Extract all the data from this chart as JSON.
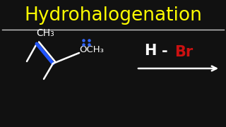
{
  "bg_color": "#111111",
  "title": "Hydrohalogenation",
  "title_color": "#ffff00",
  "title_fontsize": 19,
  "separator_color": "#cccccc",
  "struct_color": "#ffffff",
  "double_bond_color": "#2255ff",
  "dot_color": "#3366ff",
  "H_color": "#ffffff",
  "Br_color": "#cc1111",
  "arrow_color": "#ffffff",
  "ch3_label": "CH₃",
  "och3_label": "OCH₃",
  "h_label": "H",
  "br_label": "Br",
  "dash_label": "-"
}
